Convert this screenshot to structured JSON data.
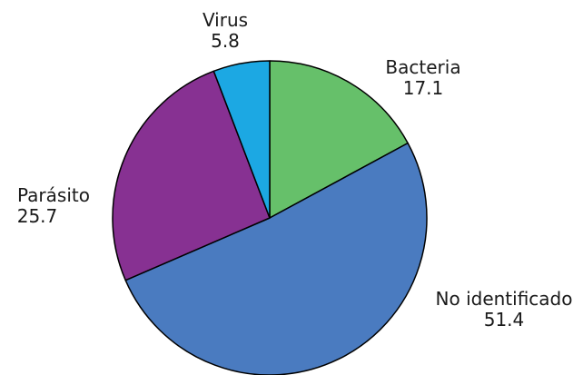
{
  "chart_data": {
    "type": "pie",
    "title": "",
    "slices": [
      {
        "label": "Bacteria",
        "value": 17.1,
        "value_text": "17.1",
        "color": "#66c06a"
      },
      {
        "label": "No identificado",
        "value": 51.4,
        "value_text": "51.4",
        "color": "#4a7bc0"
      },
      {
        "label": "Parásito",
        "value": 25.7,
        "value_text": "25.7",
        "color": "#873192"
      },
      {
        "label": "Virus",
        "value": 5.8,
        "value_text": "5.8",
        "color": "#1ca8e3"
      }
    ],
    "start_angle": "12 o'clock",
    "direction": "clockwise",
    "legend": "none"
  }
}
